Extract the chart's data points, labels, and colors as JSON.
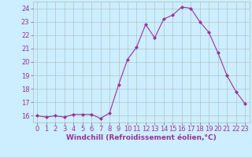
{
  "hours": [
    0,
    1,
    2,
    3,
    4,
    5,
    6,
    7,
    8,
    9,
    10,
    11,
    12,
    13,
    14,
    15,
    16,
    17,
    18,
    19,
    20,
    21,
    22,
    23
  ],
  "values": [
    16.0,
    15.9,
    16.0,
    15.9,
    16.1,
    16.1,
    16.1,
    15.8,
    16.2,
    18.3,
    20.2,
    21.1,
    22.8,
    21.8,
    23.2,
    23.5,
    24.1,
    24.0,
    23.0,
    22.2,
    20.7,
    19.0,
    17.8,
    16.9
  ],
  "line_color": "#993399",
  "marker": "D",
  "marker_size": 2.0,
  "bg_color": "#cceeff",
  "grid_color": "#aabbbb",
  "xlabel": "Windchill (Refroidissement éolien,°C)",
  "xlabel_color": "#993399",
  "tick_color": "#993399",
  "label_fontsize": 6.0,
  "xlabel_fontsize": 6.5,
  "ylim": [
    15.5,
    24.5
  ],
  "yticks": [
    16,
    17,
    18,
    19,
    20,
    21,
    22,
    23,
    24
  ],
  "xticks": [
    0,
    1,
    2,
    3,
    4,
    5,
    6,
    7,
    8,
    9,
    10,
    11,
    12,
    13,
    14,
    15,
    16,
    17,
    18,
    19,
    20,
    21,
    22,
    23
  ]
}
